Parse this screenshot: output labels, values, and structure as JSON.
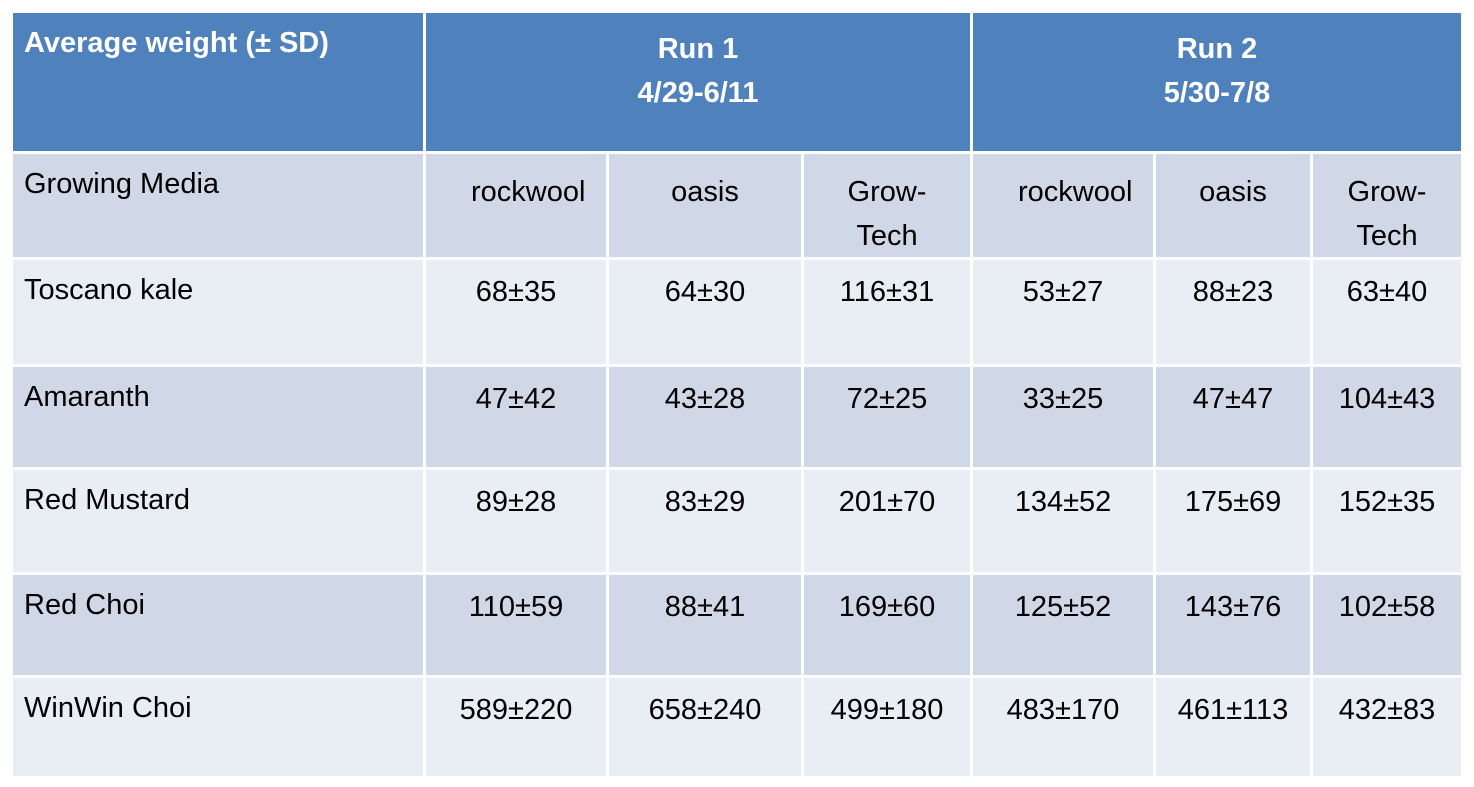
{
  "table": {
    "title": "Average weight (± SD)",
    "groups": [
      {
        "name": "Run 1",
        "dates": "4/29-6/11"
      },
      {
        "name": "Run 2",
        "dates": "5/30-7/8"
      }
    ],
    "media_label": "Growing Media",
    "media": [
      "rockwool",
      "oasis",
      "Grow-Tech",
      "rockwool",
      "oasis",
      "Grow-Tech"
    ],
    "rows": [
      {
        "label": "Toscano kale",
        "values": [
          "68±35",
          "64±30",
          "116±31",
          "53±27",
          "88±23",
          "63±40"
        ]
      },
      {
        "label": "Amaranth",
        "values": [
          "47±42",
          "43±28",
          "72±25",
          "33±25",
          "47±47",
          "104±43"
        ]
      },
      {
        "label": "Red Mustard",
        "values": [
          "89±28",
          "83±29",
          "201±70",
          "134±52",
          "175±69",
          "152±35"
        ]
      },
      {
        "label": "Red Choi",
        "values": [
          "110±59",
          "88±41",
          "169±60",
          "125±52",
          "143±76",
          "102±58"
        ]
      },
      {
        "label": "WinWin Choi",
        "values": [
          "589±220",
          "658±240",
          "499±180",
          "483±170",
          "461±113",
          "432±83"
        ]
      }
    ]
  }
}
